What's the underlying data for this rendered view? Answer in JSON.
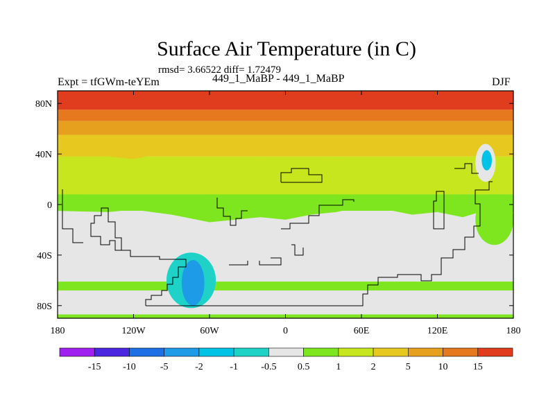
{
  "header": {
    "title": "Surface Air Temperature (in C)",
    "stats": "rmsd= 3.66522  diff= 1.72479",
    "expt": "Expt = tfGWm-teYEm",
    "cases": "449_1_MaBP - 449_1_MaBP",
    "season": "DJF"
  },
  "chart_data": {
    "type": "heatmap",
    "title": "Surface Air Temperature (in C)",
    "subtitle": "rmsd= 3.66522  diff= 1.72479",
    "xlabel": "",
    "ylabel": "",
    "xlim": [
      -180,
      180
    ],
    "ylim": [
      -90,
      90
    ],
    "x_ticks": [
      {
        "value": -180,
        "label": "180"
      },
      {
        "value": -120,
        "label": "120W"
      },
      {
        "value": -60,
        "label": "60W"
      },
      {
        "value": 0,
        "label": "0"
      },
      {
        "value": 60,
        "label": "60E"
      },
      {
        "value": 120,
        "label": "120E"
      },
      {
        "value": 180,
        "label": "180"
      }
    ],
    "y_ticks": [
      {
        "value": 80,
        "label": "80N"
      },
      {
        "value": 40,
        "label": "40N"
      },
      {
        "value": 0,
        "label": "0"
      },
      {
        "value": -40,
        "label": "40S"
      },
      {
        "value": -80,
        "label": "80S"
      }
    ],
    "colorbar": {
      "levels": [
        "-15",
        "-10",
        "-5",
        "-2",
        "-1",
        "-0.5",
        "0.5",
        "1",
        "2",
        "5",
        "10",
        "15"
      ],
      "colors": [
        "#a020f0",
        "#4b28e0",
        "#1e6ee6",
        "#1e9be6",
        "#00c3e6",
        "#1fd2c8",
        "#e6e6e6",
        "#7de61e",
        "#c8e61e",
        "#e6c81e",
        "#e6a01e",
        "#e6781e",
        "#e03c1e"
      ]
    },
    "colors": {
      "c_n05_05": "#e6e6e6",
      "c_05_1": "#7de61e",
      "c_1_2": "#c8e61e",
      "c_2_5": "#e6c81e",
      "c_5_10": "#e6a01e",
      "c_10_15": "#e6781e",
      "c_15p": "#e03c1e",
      "c_n1_n05": "#1fd2c8",
      "c_n2_n1": "#00c3e6",
      "c_n5_n2": "#1e9be6",
      "coast": "#000000"
    },
    "lat_bands": [
      {
        "lat_from": 90,
        "lat_to": 75,
        "min": 15,
        "max": null
      },
      {
        "lat_from": 75,
        "lat_to": 66,
        "min": 10,
        "max": 15
      },
      {
        "lat_from": 66,
        "lat_to": 55,
        "min": 5,
        "max": 10
      },
      {
        "lat_from": 55,
        "lat_to": 38,
        "min": 2,
        "max": 5
      },
      {
        "lat_from": 38,
        "lat_to": 8,
        "min": 1,
        "max": 2
      },
      {
        "lat_from": 8,
        "lat_to": -5,
        "min": 0.5,
        "max": 1
      },
      {
        "lat_from": -5,
        "lat_to": -90,
        "min": -0.5,
        "max": 0.5
      }
    ],
    "regions": [
      {
        "name": "southern-ocean-belt",
        "range": "0.5 to 1",
        "lon": [
          -180,
          180
        ],
        "lat": [
          -61,
          -68
        ]
      },
      {
        "name": "antarctic-coast-belt",
        "range": "0.5 to 1",
        "lon": [
          -180,
          180
        ],
        "lat": [
          -87,
          -90
        ]
      },
      {
        "name": "south-america-cold-anomaly",
        "range": "-1 to -0.5",
        "lon": [
          -94,
          -55
        ],
        "lat": [
          -38,
          -82
        ]
      },
      {
        "name": "south-america-core",
        "range": "-5 to -2",
        "lon": [
          -82,
          -64
        ],
        "lat": [
          -44,
          -80
        ]
      },
      {
        "name": "west-pacific-warm-spot",
        "range": "0.5 to 1",
        "lon": [
          150,
          180
        ],
        "lat": [
          8,
          -32
        ]
      },
      {
        "name": "japan-cold-spot",
        "range": "-0.5 to 0.5",
        "lon": [
          150,
          166
        ],
        "lat": [
          48,
          18
        ]
      },
      {
        "name": "japan-cold-core",
        "range": "-2 to -1",
        "lon": [
          155,
          163
        ],
        "lat": [
          43,
          27
        ]
      }
    ]
  }
}
